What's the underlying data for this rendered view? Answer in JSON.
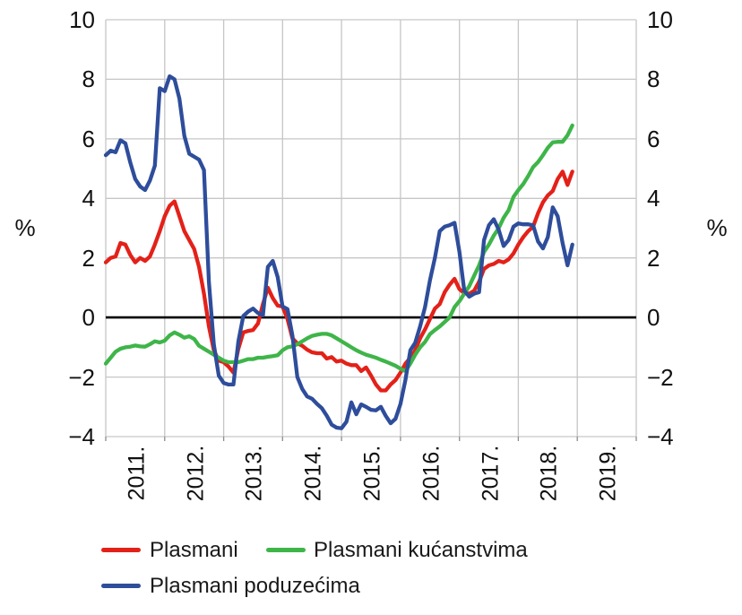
{
  "chart_data": {
    "type": "line",
    "title": "",
    "ylabel": "%",
    "ylim": [
      -4,
      10
    ],
    "y_ticks": [
      10,
      8,
      6,
      4,
      2,
      0,
      -2,
      -4
    ],
    "y_tick_labels": [
      "10",
      "8",
      "6",
      "4",
      "2",
      "0",
      "−2",
      "−4"
    ],
    "x_tick_labels": [
      "2011.",
      "2012.",
      "2013.",
      "2014.",
      "2015.",
      "2016.",
      "2017.",
      "2018.",
      "2019."
    ],
    "x_unit": "month",
    "x_start": "2011-01",
    "x_end": "2018-12",
    "x_years_span": [
      2011,
      2020
    ],
    "grid": true,
    "zero_line": true,
    "legend_position": "bottom-left",
    "colors": {
      "grid": "#c6c6c6",
      "tick": "#8c8c8c",
      "zero_line": "#000000",
      "text": "#111111"
    },
    "series": [
      {
        "name": "Plasmani",
        "color": "#e32119",
        "values": [
          1.85,
          2.0,
          2.05,
          2.5,
          2.45,
          2.1,
          1.85,
          2.0,
          1.9,
          2.05,
          2.45,
          2.9,
          3.4,
          3.75,
          3.9,
          3.4,
          2.9,
          2.6,
          2.3,
          1.7,
          0.8,
          -0.3,
          -1.1,
          -1.45,
          -1.5,
          -1.65,
          -1.85,
          -1.05,
          -0.5,
          -0.45,
          -0.42,
          -0.2,
          0.45,
          1.0,
          0.65,
          0.4,
          0.37,
          -0.05,
          -0.7,
          -0.87,
          -0.95,
          -1.08,
          -1.17,
          -1.2,
          -1.2,
          -1.38,
          -1.33,
          -1.48,
          -1.45,
          -1.55,
          -1.6,
          -1.6,
          -1.8,
          -1.68,
          -1.95,
          -2.25,
          -2.45,
          -2.45,
          -2.25,
          -2.1,
          -1.85,
          -1.55,
          -1.35,
          -1.1,
          -0.7,
          -0.4,
          -0.05,
          0.3,
          0.45,
          0.85,
          1.1,
          1.3,
          0.95,
          0.82,
          0.8,
          0.9,
          1.2,
          1.63,
          1.75,
          1.8,
          1.9,
          1.85,
          1.95,
          2.15,
          2.45,
          2.7,
          2.9,
          3.05,
          3.5,
          3.87,
          4.1,
          4.25,
          4.65,
          4.9,
          4.45,
          4.9
        ]
      },
      {
        "name": "Plasmani kućanstvima",
        "color": "#3eb549",
        "values": [
          -1.55,
          -1.35,
          -1.15,
          -1.05,
          -1.0,
          -0.98,
          -0.94,
          -0.97,
          -0.98,
          -0.9,
          -0.8,
          -0.84,
          -0.78,
          -0.6,
          -0.5,
          -0.58,
          -0.68,
          -0.63,
          -0.72,
          -0.95,
          -1.05,
          -1.15,
          -1.25,
          -1.35,
          -1.45,
          -1.5,
          -1.5,
          -1.5,
          -1.45,
          -1.4,
          -1.4,
          -1.35,
          -1.35,
          -1.32,
          -1.3,
          -1.27,
          -1.1,
          -1.0,
          -0.97,
          -0.9,
          -0.8,
          -0.7,
          -0.62,
          -0.58,
          -0.55,
          -0.55,
          -0.6,
          -0.7,
          -0.8,
          -0.9,
          -1.0,
          -1.1,
          -1.18,
          -1.25,
          -1.3,
          -1.35,
          -1.42,
          -1.48,
          -1.55,
          -1.62,
          -1.72,
          -1.8,
          -1.55,
          -1.25,
          -1.0,
          -0.82,
          -0.56,
          -0.42,
          -0.3,
          -0.15,
          0.0,
          0.35,
          0.55,
          0.8,
          1.05,
          1.4,
          1.75,
          2.2,
          2.45,
          2.75,
          3.0,
          3.35,
          3.6,
          4.05,
          4.28,
          4.48,
          4.75,
          5.05,
          5.22,
          5.45,
          5.7,
          5.88,
          5.9,
          5.9,
          6.12,
          6.45
        ]
      },
      {
        "name": "Plasmani poduzećima",
        "color": "#2e4d9b",
        "values": [
          5.45,
          5.6,
          5.55,
          5.95,
          5.85,
          5.2,
          4.65,
          4.4,
          4.28,
          4.6,
          5.1,
          7.7,
          7.6,
          8.1,
          8.0,
          7.35,
          6.1,
          5.5,
          5.4,
          5.3,
          4.95,
          1.2,
          -0.9,
          -1.95,
          -2.2,
          -2.25,
          -2.25,
          -0.8,
          0.05,
          0.2,
          0.3,
          0.15,
          0.07,
          1.7,
          1.9,
          1.35,
          0.37,
          0.28,
          -0.6,
          -2.0,
          -2.4,
          -2.65,
          -2.73,
          -2.9,
          -3.05,
          -3.3,
          -3.6,
          -3.7,
          -3.72,
          -3.5,
          -2.85,
          -3.25,
          -2.92,
          -3.0,
          -3.1,
          -3.12,
          -3.0,
          -3.3,
          -3.55,
          -3.4,
          -2.9,
          -2.1,
          -1.1,
          -0.85,
          -0.3,
          0.35,
          1.25,
          2.0,
          2.9,
          3.05,
          3.1,
          3.18,
          2.2,
          0.9,
          0.7,
          0.8,
          0.85,
          2.6,
          3.1,
          3.3,
          2.95,
          2.4,
          2.6,
          3.05,
          3.16,
          3.13,
          3.13,
          3.1,
          2.55,
          2.32,
          2.7,
          3.7,
          3.4,
          2.5,
          1.75,
          2.45
        ]
      }
    ]
  }
}
